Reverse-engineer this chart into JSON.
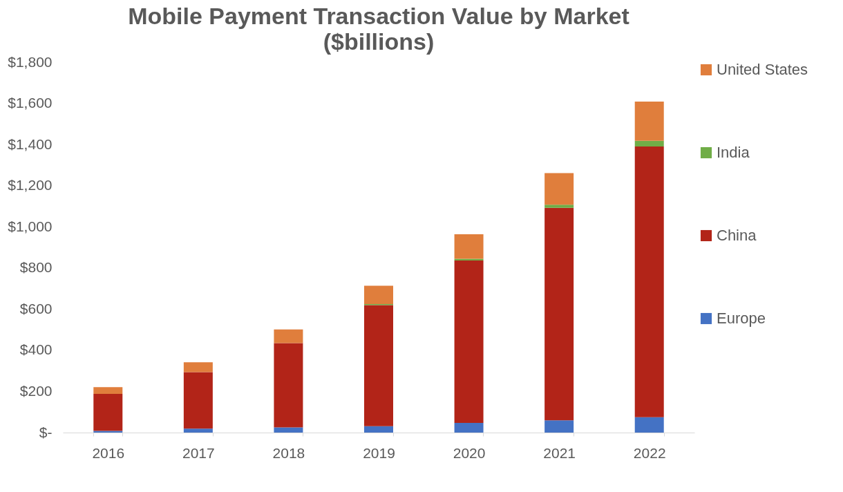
{
  "chart_data": {
    "type": "bar",
    "title": "Mobile Payment Transaction Value by Market",
    "subtitle": "($billions)",
    "categories": [
      "2016",
      "2017",
      "2018",
      "2019",
      "2020",
      "2021",
      "2022"
    ],
    "stacked": true,
    "legend": "right",
    "grid": false,
    "ylim": [
      0,
      1800
    ],
    "yticks": [
      {
        "value": 0,
        "label": "$-"
      },
      {
        "value": 200,
        "label": "$200"
      },
      {
        "value": 400,
        "label": "$400"
      },
      {
        "value": 600,
        "label": "$600"
      },
      {
        "value": 800,
        "label": "$800"
      },
      {
        "value": 1000,
        "label": "$1,000"
      },
      {
        "value": 1200,
        "label": "$1,200"
      },
      {
        "value": 1400,
        "label": "$1,400"
      },
      {
        "value": 1600,
        "label": "$1,600"
      },
      {
        "value": 1800,
        "label": "$1,800"
      }
    ],
    "series": [
      {
        "name": "Europe",
        "color": "#4472c4",
        "values": [
          8,
          19,
          25,
          31,
          47,
          60,
          75
        ]
      },
      {
        "name": "China",
        "color": "#b22418",
        "values": [
          180,
          275,
          410,
          589,
          789,
          1032,
          1315
        ]
      },
      {
        "name": "India",
        "color": "#70ad47",
        "values": [
          null,
          null,
          null,
          5,
          9,
          15,
          28
        ]
      },
      {
        "name": "United States",
        "color": "#e07e3c",
        "values": [
          33,
          48,
          66,
          89,
          119,
          154,
          191
        ]
      }
    ]
  }
}
